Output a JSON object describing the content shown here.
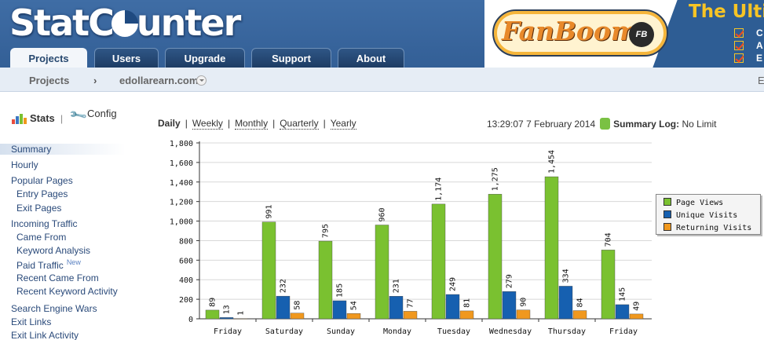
{
  "app": {
    "logo_text_left": "StatC",
    "logo_text_right": "unter"
  },
  "tabs": [
    {
      "label": "Projects",
      "active": true
    },
    {
      "label": "Users",
      "active": false
    },
    {
      "label": "Upgrade",
      "active": false
    },
    {
      "label": "Support",
      "active": false
    },
    {
      "label": "About",
      "active": false
    }
  ],
  "ad": {
    "brand": "FanBoom",
    "badge": "FB",
    "headline": "The Ulti",
    "bullets": [
      "C",
      "A",
      "E"
    ]
  },
  "breadcrumb": {
    "root": "Projects",
    "separator": "›",
    "project": "edollarearn.com",
    "right_edge": "E"
  },
  "sidebar": {
    "stats_label": "Stats",
    "separator": "|",
    "config_label": "Config",
    "items": [
      {
        "label": "Summary",
        "level": 1,
        "selected": true
      },
      {
        "label": "Hourly",
        "level": 1
      },
      {
        "label": "Popular Pages",
        "level": 1
      },
      {
        "label": "Entry Pages",
        "level": 2
      },
      {
        "label": "Exit Pages",
        "level": 2
      },
      {
        "label": "Incoming Traffic",
        "level": 1
      },
      {
        "label": "Came From",
        "level": 2
      },
      {
        "label": "Keyword Analysis",
        "level": 2
      },
      {
        "label": "Paid Traffic",
        "level": 2,
        "badge": "New"
      },
      {
        "label": "Recent Came From",
        "level": 2
      },
      {
        "label": "Recent Keyword Activity",
        "level": 2
      },
      {
        "label": "Search Engine Wars",
        "level": 1
      },
      {
        "label": "Exit Links",
        "level": 1
      },
      {
        "label": "Exit Link Activity",
        "level": 1
      }
    ]
  },
  "periods": {
    "items": [
      "Daily",
      "Weekly",
      "Monthly",
      "Quarterly",
      "Yearly"
    ],
    "current": "Daily",
    "separator": "|"
  },
  "status": {
    "time": "13:29:07",
    "date": "7 February 2014",
    "log_label": "Summary Log:",
    "log_value": "No Limit"
  },
  "colors": {
    "page_views": "#7ac130",
    "unique_visits": "#1660b0",
    "returning_visits": "#f0981e"
  },
  "chart_data": {
    "type": "bar",
    "categories": [
      "Friday",
      "Saturday",
      "Sunday",
      "Monday",
      "Tuesday",
      "Wednesday",
      "Thursday",
      "Friday"
    ],
    "series": [
      {
        "name": "Page Views",
        "values": [
          89,
          991,
          795,
          960,
          1174,
          1275,
          1454,
          704
        ]
      },
      {
        "name": "Unique Visits",
        "values": [
          13,
          232,
          185,
          231,
          249,
          279,
          334,
          145
        ]
      },
      {
        "name": "Returning Visits",
        "values": [
          1,
          58,
          54,
          77,
          81,
          90,
          84,
          49
        ]
      }
    ],
    "value_labels": [
      [
        "89",
        "991",
        "795",
        "960",
        "1,174",
        "1,275",
        "1,454",
        "704"
      ],
      [
        "13",
        "232",
        "185",
        "231",
        "249",
        "279",
        "334",
        "145"
      ],
      [
        "1",
        "58",
        "54",
        "77",
        "81",
        "90",
        "84",
        "49"
      ]
    ],
    "yticks": [
      "0",
      "200",
      "400",
      "600",
      "800",
      "1,000",
      "1,200",
      "1,400",
      "1,600",
      "1,800"
    ],
    "ylim": [
      0,
      1800
    ],
    "grid": true,
    "legend": "right"
  }
}
